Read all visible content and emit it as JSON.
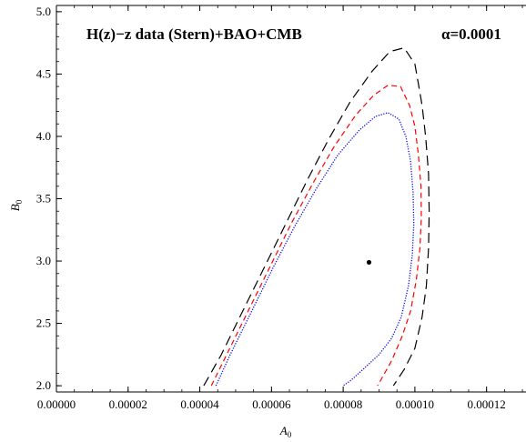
{
  "chart_data": {
    "type": "line",
    "title": "H(z)−z data (Stern)+BAO+CMB",
    "annotation": "α=0.0001",
    "xlabel": "A",
    "xlabel_sub": "0",
    "ylabel": "B",
    "ylabel_sub": "0",
    "xlim": [
      0.0,
      0.000131
    ],
    "ylim": [
      1.95,
      5.05
    ],
    "xticks": [
      0.0,
      2e-05,
      4e-05,
      6e-05,
      8e-05,
      0.0001,
      0.00012
    ],
    "xtick_labels": [
      "0.00000",
      "0.00002",
      "0.00004",
      "0.00006",
      "0.00008",
      "0.00010",
      "0.00012"
    ],
    "yticks": [
      2.0,
      2.5,
      3.0,
      3.5,
      4.0,
      4.5,
      5.0
    ],
    "ytick_labels": [
      "2.0",
      "2.5",
      "3.0",
      "3.5",
      "4.0",
      "4.5",
      "5.0"
    ],
    "grid": false,
    "best_fit_point": {
      "x": 8.72e-05,
      "y": 2.99
    },
    "series": [
      {
        "color": "#000000",
        "dash": "long-dash",
        "points": [
          [
            4.11e-05,
            2.0
          ],
          [
            4.6e-05,
            2.25
          ],
          [
            5.2e-05,
            2.6
          ],
          [
            5.8e-05,
            2.95
          ],
          [
            6.4e-05,
            3.3
          ],
          [
            7e-05,
            3.65
          ],
          [
            7.6e-05,
            3.98
          ],
          [
            8.2e-05,
            4.28
          ],
          [
            8.8e-05,
            4.52
          ],
          [
            9.3e-05,
            4.68
          ],
          [
            9.7e-05,
            4.71
          ],
          [
            0.0001,
            4.58
          ],
          [
            0.000101,
            4.42
          ],
          [
            0.000102,
            4.25
          ],
          [
            0.000103,
            4.0
          ],
          [
            0.0001038,
            3.7
          ],
          [
            0.000104,
            3.4
          ],
          [
            0.0001038,
            3.1
          ],
          [
            0.0001032,
            2.8
          ],
          [
            0.000102,
            2.55
          ],
          [
            0.0001,
            2.3
          ],
          [
            9.7e-05,
            2.13
          ],
          [
            9.4e-05,
            2.0
          ]
        ]
      },
      {
        "color": "#ff0000",
        "dash": "short-dash",
        "points": [
          [
            4.32e-05,
            2.0
          ],
          [
            4.75e-05,
            2.25
          ],
          [
            5.35e-05,
            2.6
          ],
          [
            5.95e-05,
            2.95
          ],
          [
            6.55e-05,
            3.3
          ],
          [
            7.15e-05,
            3.62
          ],
          [
            7.75e-05,
            3.92
          ],
          [
            8.35e-05,
            4.17
          ],
          [
            8.85e-05,
            4.33
          ],
          [
            9.25e-05,
            4.41
          ],
          [
            9.6e-05,
            4.4
          ],
          [
            9.85e-05,
            4.25
          ],
          [
            0.0001,
            4.08
          ],
          [
            0.000101,
            3.85
          ],
          [
            0.0001017,
            3.6
          ],
          [
            0.0001018,
            3.35
          ],
          [
            0.0001014,
            3.1
          ],
          [
            0.0001004,
            2.85
          ],
          [
            9.88e-05,
            2.6
          ],
          [
            9.65e-05,
            2.4
          ],
          [
            9.35e-05,
            2.2
          ],
          [
            9e-05,
            2.02
          ],
          [
            8.96e-05,
            2.0
          ]
        ]
      },
      {
        "color": "#0000ff",
        "dash": "dotted",
        "points": [
          [
            4.45e-05,
            2.0
          ],
          [
            4.85e-05,
            2.25
          ],
          [
            5.45e-05,
            2.6
          ],
          [
            6.05e-05,
            2.95
          ],
          [
            6.65e-05,
            3.28
          ],
          [
            7.25e-05,
            3.58
          ],
          [
            7.85e-05,
            3.85
          ],
          [
            8.45e-05,
            4.05
          ],
          [
            8.9e-05,
            4.16
          ],
          [
            9.25e-05,
            4.19
          ],
          [
            9.55e-05,
            4.14
          ],
          [
            9.75e-05,
            4.0
          ],
          [
            9.88e-05,
            3.8
          ],
          [
            9.95e-05,
            3.55
          ],
          [
            9.97e-05,
            3.3
          ],
          [
            9.93e-05,
            3.05
          ],
          [
            9.82e-05,
            2.8
          ],
          [
            9.62e-05,
            2.55
          ],
          [
            9.35e-05,
            2.38
          ],
          [
            9e-05,
            2.25
          ],
          [
            8.55e-05,
            2.13
          ],
          [
            8.2e-05,
            2.04
          ],
          [
            8e-05,
            2.0
          ]
        ]
      }
    ]
  }
}
